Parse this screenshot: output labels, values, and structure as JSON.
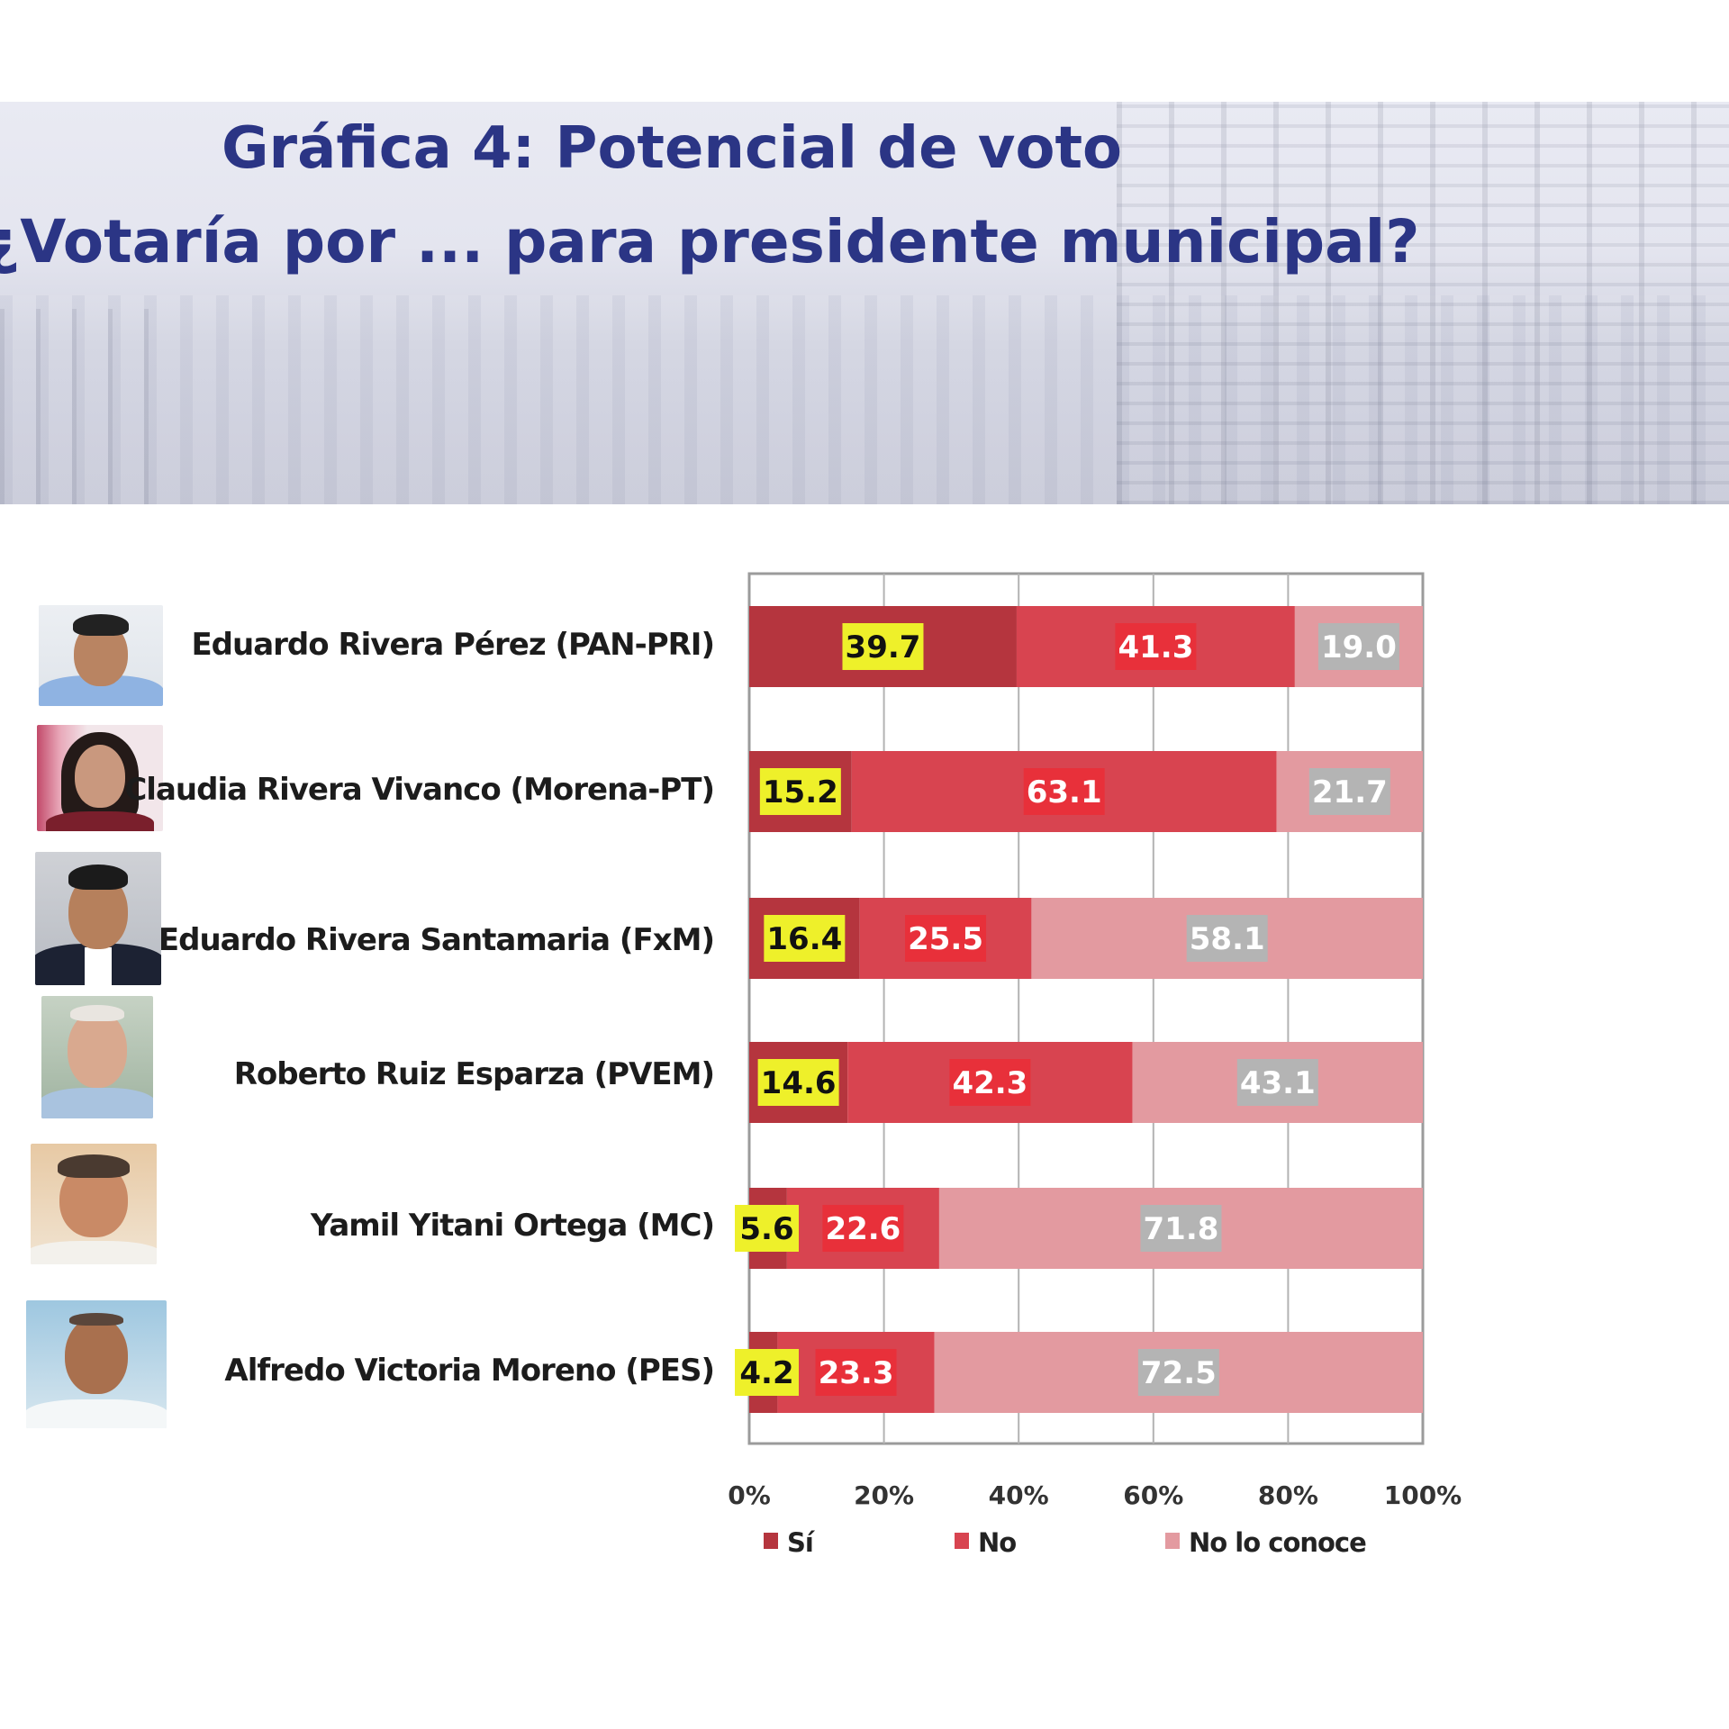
{
  "title_line1": "Gráfica 4: Potencial de voto",
  "title_line2": "¿Votaría por ... para presidente municipal?",
  "candidates": [
    {
      "label": "Eduardo Rivera Pérez (PAN-PRI)",
      "photo_icon": "candidate-photo-eduardo-rivera-perez"
    },
    {
      "label": "Claudia Rivera Vivanco (Morena-PT)",
      "photo_icon": "candidate-photo-claudia-rivera-vivanco"
    },
    {
      "label": "Eduardo Rivera Santamaria (FxM)",
      "photo_icon": "candidate-photo-eduardo-rivera-santamaria"
    },
    {
      "label": "Roberto Ruiz Esparza (PVEM)",
      "photo_icon": "candidate-photo-roberto-ruiz-esparza"
    },
    {
      "label": "Yamil Yitani Ortega (MC)",
      "photo_icon": "candidate-photo-yamil-yitani-ortega"
    },
    {
      "label": "Alfredo Victoria Moreno (PES)",
      "photo_icon": "candidate-photo-alfredo-victoria-moreno"
    }
  ],
  "chart_data": {
    "type": "bar",
    "orientation": "horizontal",
    "stacked": true,
    "percent_stacked": true,
    "categories": [
      "Eduardo Rivera Pérez (PAN-PRI)",
      "Claudia Rivera Vivanco (Morena-PT)",
      "Eduardo Rivera Santamaria (FxM)",
      "Roberto Ruiz Esparza (PVEM)",
      "Yamil Yitani Ortega (MC)",
      "Alfredo Victoria Moreno (PES)"
    ],
    "series": [
      {
        "name": "Sí",
        "values": [
          39.7,
          15.2,
          16.4,
          14.6,
          5.6,
          4.2
        ],
        "color": "#b5353e",
        "label_bg": "#eef02a",
        "label_color": "#111111"
      },
      {
        "name": "No",
        "values": [
          41.3,
          63.1,
          25.5,
          42.3,
          22.6,
          23.3
        ],
        "color": "#d84450",
        "label_bg": "#e8303a",
        "label_color": "#ffffff"
      },
      {
        "name": "No lo conoce",
        "values": [
          19.0,
          21.7,
          58.1,
          43.1,
          71.8,
          72.5
        ],
        "color": "#e39aa0",
        "label_bg": "#b4b4b4",
        "label_color": "#ffffff"
      }
    ],
    "x_ticks": [
      "0%",
      "20%",
      "40%",
      "60%",
      "80%",
      "100%"
    ],
    "xlim": [
      0,
      100
    ],
    "grid": true,
    "legend_position": "bottom"
  }
}
